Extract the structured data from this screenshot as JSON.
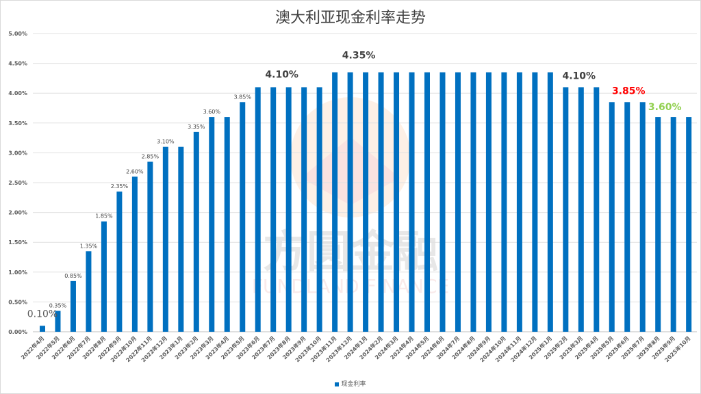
{
  "chart_data": {
    "type": "bar",
    "title": "澳大利亚现金利率走势",
    "xlabel": "",
    "ylabel": "",
    "ylim": [
      0,
      5
    ],
    "yticks": [
      "0.00%",
      "0.50%",
      "1.00%",
      "1.50%",
      "2.00%",
      "2.50%",
      "3.00%",
      "3.50%",
      "4.00%",
      "4.50%",
      "5.00%"
    ],
    "grid": true,
    "legend_position": "bottom",
    "series": [
      {
        "name": "现金利率",
        "color": "#0070c0",
        "values": [
          0.1,
          0.35,
          0.85,
          1.35,
          1.85,
          2.35,
          2.6,
          2.85,
          3.1,
          3.1,
          3.35,
          3.6,
          3.6,
          3.85,
          4.1,
          4.1,
          4.1,
          4.1,
          4.1,
          4.35,
          4.35,
          4.35,
          4.35,
          4.35,
          4.35,
          4.35,
          4.35,
          4.35,
          4.35,
          4.35,
          4.35,
          4.35,
          4.35,
          4.35,
          4.1,
          4.1,
          4.1,
          3.85,
          3.85,
          3.85,
          3.6,
          3.6,
          3.6
        ]
      }
    ],
    "categories": [
      "2022年4月",
      "2022年5月",
      "2022年6月",
      "2022年7月",
      "2022年8月",
      "2022年9月",
      "2022年10月",
      "2022年11月",
      "2022年12月",
      "2023年1月",
      "2023年2月",
      "2023年3月",
      "2023年4月",
      "2023年5月",
      "2023年6月",
      "2023年7月",
      "2023年8月",
      "2023年9月",
      "2023年10月",
      "2023年11月",
      "2023年12月",
      "2024年1月",
      "2024年2月",
      "2024年3月",
      "2024年4月",
      "2024年5月",
      "2024年6月",
      "2024年7月",
      "2024年8月",
      "2024年9月",
      "2024年10月",
      "2024年11月",
      "2024年12月",
      "2025年1月",
      "2025年2月",
      "2025年3月",
      "2025年4月",
      "2025年5月",
      "2025年6月",
      "2025年7月",
      "2025年8月",
      "2025年9月",
      "2025年10月"
    ],
    "data_labels": [
      {
        "index": 0,
        "text": "0.10%",
        "style": "large-gray"
      },
      {
        "index": 1,
        "text": "0.35%",
        "style": "small"
      },
      {
        "index": 2,
        "text": "0.85%",
        "style": "small"
      },
      {
        "index": 3,
        "text": "1.35%",
        "style": "small"
      },
      {
        "index": 4,
        "text": "1.85%",
        "style": "small"
      },
      {
        "index": 5,
        "text": "2.35%",
        "style": "small"
      },
      {
        "index": 6,
        "text": "2.60%",
        "style": "small"
      },
      {
        "index": 7,
        "text": "2.85%",
        "style": "small"
      },
      {
        "index": 8,
        "text": "3.10%",
        "style": "small"
      },
      {
        "index": 10,
        "text": "3.35%",
        "style": "small"
      },
      {
        "index": 11,
        "text": "3.60%",
        "style": "small"
      },
      {
        "index": 13,
        "text": "3.85%",
        "style": "small"
      },
      {
        "index": 16,
        "text": "4.10%",
        "style": "large"
      },
      {
        "index": 21,
        "text": "4.35%",
        "style": "large"
      },
      {
        "index": 35,
        "text": "4.10%",
        "style": "large"
      },
      {
        "index": 38,
        "text": "3.85%",
        "style": "large-red"
      },
      {
        "index": 40,
        "text": "3.60%",
        "style": "large-green"
      }
    ],
    "label_colors": {
      "large": "#404040",
      "large-gray": "#595959",
      "small": "#404040",
      "large-red": "#ff0000",
      "large-green": "#92d050"
    }
  },
  "watermark": {
    "cn": "方圓金融",
    "en": "FUNDLAND FINANCE"
  }
}
